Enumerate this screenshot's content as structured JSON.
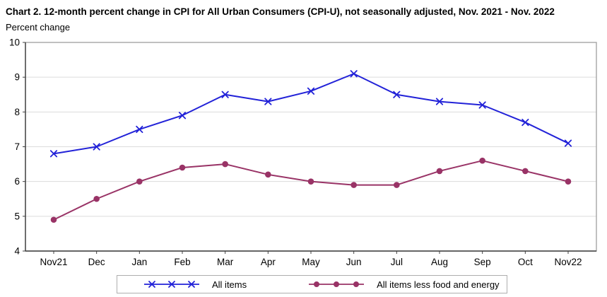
{
  "title": "Chart 2. 12-month percent change in CPI for All Urban Consumers (CPI-U), not seasonally adjusted, Nov. 2021 - Nov. 2022",
  "y_axis_title": "Percent change",
  "colors": {
    "all_items_line": "#2222d8",
    "core_line": "#993366",
    "gridline": "#dcdcdc",
    "frame": "#a6a6a6",
    "axis": "#404040",
    "text": "#000000"
  },
  "legend": {
    "items": [
      {
        "label": "All items"
      },
      {
        "label": "All items less food and energy"
      }
    ]
  },
  "chart_data": {
    "type": "line",
    "title": "Chart 2. 12-month percent change in CPI for All Urban Consumers (CPI-U), not seasonally adjusted, Nov. 2021 - Nov. 2022",
    "ylabel": "Percent change",
    "categories": [
      "Nov21",
      "Dec",
      "Jan",
      "Feb",
      "Mar",
      "Apr",
      "May",
      "Jun",
      "Jul",
      "Aug",
      "Sep",
      "Oct",
      "Nov22"
    ],
    "series": [
      {
        "name": "All items",
        "marker": "x",
        "color": "#2222d8",
        "values": [
          6.8,
          7.0,
          7.5,
          7.9,
          8.5,
          8.3,
          8.6,
          9.1,
          8.5,
          8.3,
          8.2,
          7.7,
          7.1
        ]
      },
      {
        "name": "All items less food and energy",
        "marker": "circle",
        "color": "#993366",
        "values": [
          4.9,
          5.5,
          6.0,
          6.4,
          6.5,
          6.2,
          6.0,
          5.9,
          5.9,
          6.3,
          6.6,
          6.3,
          6.0
        ]
      }
    ],
    "ylim": [
      4,
      10
    ],
    "yticks": [
      4,
      5,
      6,
      7,
      8,
      9,
      10
    ],
    "grid": "horizontal",
    "legend_position": "bottom"
  }
}
